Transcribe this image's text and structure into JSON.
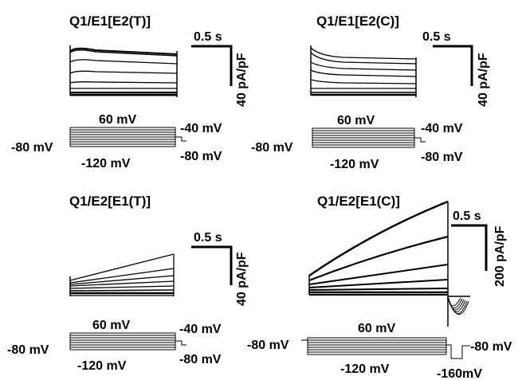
{
  "panels": [
    {
      "title": "Q1/E1[E2(T)]",
      "scale_time": "0.5 s",
      "scale_current": "40 pA/pF",
      "protocol": {
        "top": "60 mV",
        "bottom": "-120 mV",
        "hold": "-80 mV",
        "tail": "-40 mV",
        "after": "-80 mV"
      }
    },
    {
      "title": "Q1/E1[E2(C)]",
      "scale_time": "0.5 s",
      "scale_current": "40 pA/pF",
      "protocol": {
        "top": "60 mV",
        "bottom": "-120 mV",
        "hold": "-80 mV",
        "tail": "-40 mV",
        "after": "-80 mV"
      }
    },
    {
      "title": "Q1/E2[E1(T)]",
      "scale_time": "0.5 s",
      "scale_current": "40 pA/pF",
      "protocol": {
        "top": "60 mV",
        "bottom": "-120 mV",
        "hold": "-80 mV",
        "tail": "-40 mV",
        "after": "-80 mV"
      }
    },
    {
      "title": "Q1/E2[E1(C)]",
      "scale_time": "0.5 s",
      "scale_current": "200 pA/pF",
      "protocol": {
        "top": "60 mV",
        "bottom": "-120 mV",
        "hold": "-80 mV",
        "after": "-80 mV",
        "tail_low": "-160mV"
      }
    }
  ],
  "colors": {
    "trace": "#000000",
    "background": "#ffffff"
  }
}
